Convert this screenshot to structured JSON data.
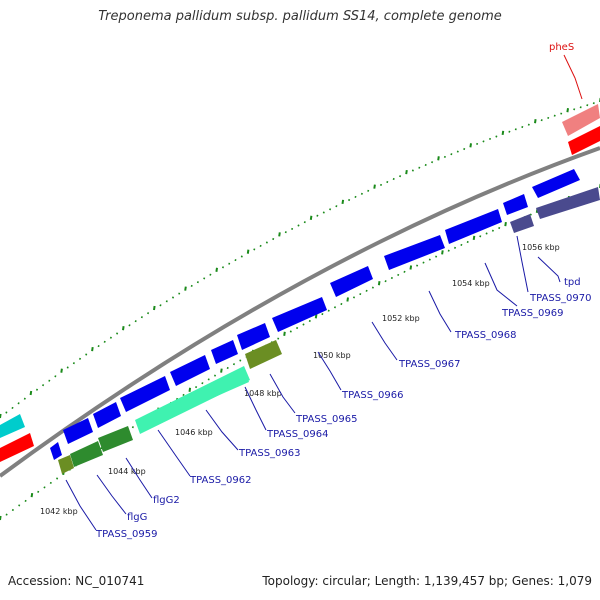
{
  "title": "Treponema pallidum subsp. pallidum SS14, complete genome",
  "footer": {
    "accession": "Accession: NC_010741",
    "stats": "Topology: circular; Length: 1,139,457 bp; Genes: 1,079"
  },
  "colors": {
    "backbone": "#808080",
    "gene_blue": "#0000ee",
    "gene_navy": "#4a4a8e",
    "gene_green": "#2e8b2e",
    "gene_aqua": "#3ff2b0",
    "gene_olive": "#6b8e23",
    "gene_red": "#ff0000",
    "gene_pink": "#f08080",
    "gene_cyan": "#00cccc",
    "tick_green": "#1a8a1a",
    "label_blue": "#1a1aa6",
    "label_red": "#dd1111"
  },
  "scale_labels": [
    "1042 kbp",
    "1044 kbp",
    "1046 kbp",
    "1048 kbp",
    "1050 kbp",
    "1052 kbp",
    "1054 kbp",
    "1056 kbp"
  ],
  "gene_labels": [
    {
      "text": "pheS",
      "color": "red"
    },
    {
      "text": "tpd",
      "color": "blue"
    },
    {
      "text": "TPASS_0970",
      "color": "blue"
    },
    {
      "text": "TPASS_0969",
      "color": "blue"
    },
    {
      "text": "TPASS_0968",
      "color": "blue"
    },
    {
      "text": "TPASS_0967",
      "color": "blue"
    },
    {
      "text": "TPASS_0966",
      "color": "blue"
    },
    {
      "text": "TPASS_0965",
      "color": "blue"
    },
    {
      "text": "TPASS_0964",
      "color": "blue"
    },
    {
      "text": "TPASS_0963",
      "color": "blue"
    },
    {
      "text": "TPASS_0962",
      "color": "blue"
    },
    {
      "text": "flgG2",
      "color": "blue"
    },
    {
      "text": "flgG",
      "color": "blue"
    },
    {
      "text": "TPASS_0959",
      "color": "blue"
    }
  ]
}
